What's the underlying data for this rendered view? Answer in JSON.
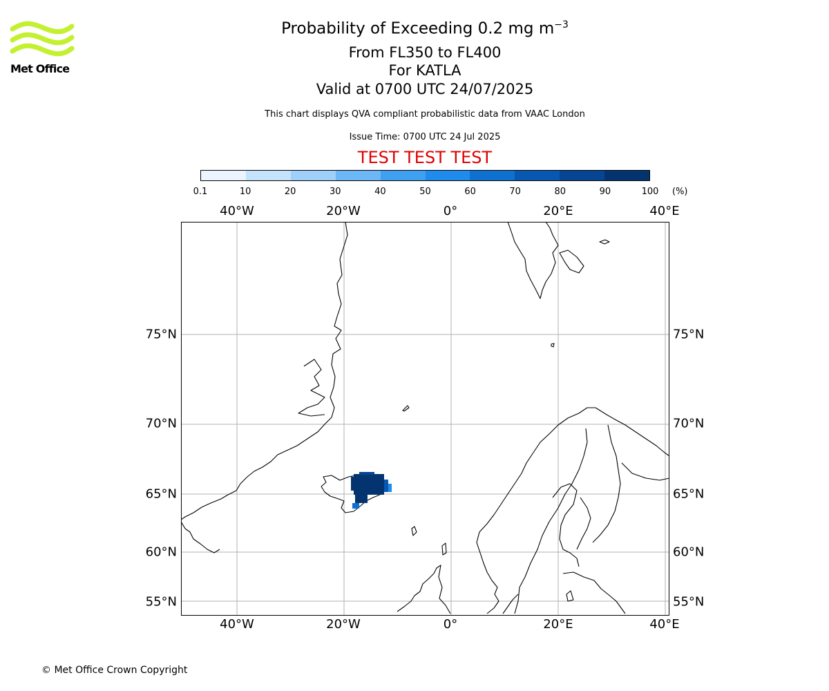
{
  "header": {
    "title_prefix": "Probability of Exceeding 0.2 mg m",
    "title_exponent": "−3",
    "flight_levels": "From FL350 to FL400",
    "volcano": "For KATLA",
    "valid_time": "Valid at 0700 UTC 24/07/2025",
    "disclaimer": "This chart displays QVA compliant probabilistic data from VAAC London",
    "issue_time": "Issue Time: 0700 UTC 24 Jul 2025",
    "test_banner": "TEST TEST TEST"
  },
  "logo": {
    "text": "Met Office",
    "color": "#c3f02f"
  },
  "colorbar": {
    "unit": "(%)",
    "ticks": [
      "0.1",
      "10",
      "20",
      "30",
      "40",
      "50",
      "60",
      "70",
      "80",
      "90",
      "100"
    ],
    "colors": [
      "#ecf5ff",
      "#c6e3fc",
      "#9ed0fa",
      "#6cb8f6",
      "#3fa0f2",
      "#1f8ced",
      "#0e70cf",
      "#0858b2",
      "#064593",
      "#043470"
    ]
  },
  "map": {
    "lon_labels": [
      "40°W",
      "20°W",
      "0°",
      "20°E",
      "40°E"
    ],
    "lat_labels": [
      "75°N",
      "70°N",
      "65°N",
      "60°N",
      "55°N"
    ],
    "grid_color": "#b0b0b0",
    "exceedance_area": {
      "location": "northern Iceland",
      "core_probability_band": "90-100",
      "core_color": "#043470"
    }
  },
  "footer": {
    "copyright": "© Met Office Crown Copyright"
  }
}
